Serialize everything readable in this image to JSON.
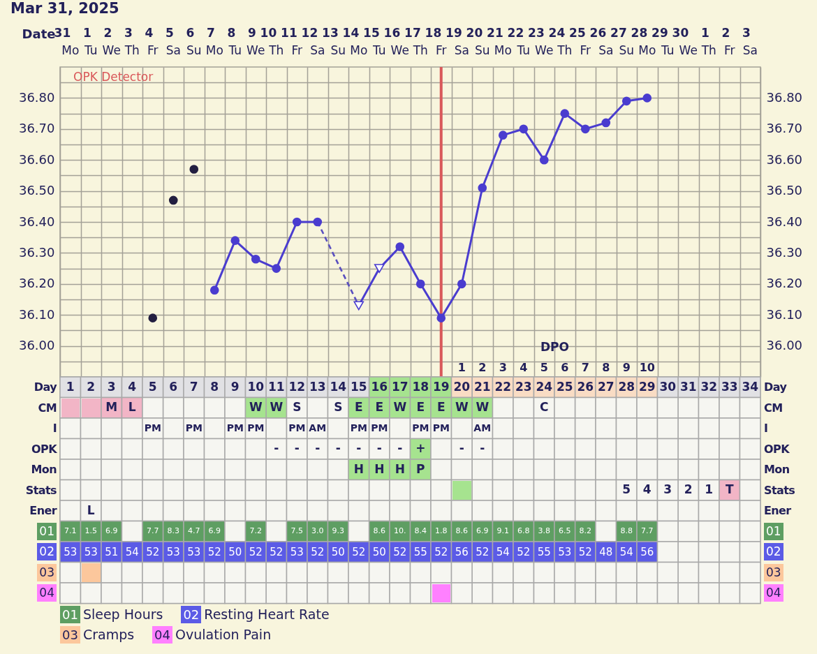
{
  "chart_data": [
    {
      "type": "line",
      "title": "Mar 31, 2025",
      "xlabel": "Date",
      "categories": [
        "31 Mo",
        "1 Tu",
        "2 We",
        "3 Th",
        "4 Fr",
        "5 Sa",
        "6 Su",
        "7 Mo",
        "8 Tu",
        "9 We",
        "10 Th",
        "11 Fr",
        "12 Sa",
        "13 Su",
        "14 Mo",
        "15 Tu",
        "16 We",
        "17 Th",
        "18 Fr",
        "19 Sa",
        "20 Su",
        "21 Mo",
        "22 Tu",
        "23 We",
        "24 Th",
        "25 Fr",
        "26 Sa",
        "27 Su",
        "28 Mo",
        "29 Tu",
        "30 We",
        "1 Th",
        "2 Fr",
        "3 Sa"
      ],
      "ylim": [
        35.9,
        36.9
      ],
      "yticks": [
        {
          "value": 35.95,
          "label": null
        },
        {
          "value": 36.0,
          "label": "36.00"
        },
        {
          "value": 36.05,
          "label": null
        },
        {
          "value": 36.1,
          "label": "36.10"
        },
        {
          "value": 36.15,
          "label": null
        },
        {
          "value": 36.2,
          "label": "36.20"
        },
        {
          "value": 36.25,
          "label": null
        },
        {
          "value": 36.3,
          "label": "36.30"
        },
        {
          "value": 36.35,
          "label": null
        },
        {
          "value": 36.4,
          "label": "36.40"
        },
        {
          "value": 36.45,
          "label": null
        },
        {
          "value": 36.5,
          "label": "36.50"
        },
        {
          "value": 36.55,
          "label": null
        },
        {
          "value": 36.6,
          "label": "36.60"
        },
        {
          "value": 36.65,
          "label": null
        },
        {
          "value": 36.7,
          "label": "36.70"
        },
        {
          "value": 36.75,
          "label": null
        },
        {
          "value": 36.8,
          "label": "36.80"
        },
        {
          "value": 36.85,
          "label": null
        }
      ],
      "y2lim": [
        35.9,
        36.9
      ],
      "y2ticks": [
        {
          "value": 36.0,
          "label": "36.00"
        },
        {
          "value": 36.1,
          "label": "36.10"
        },
        {
          "value": 36.2,
          "label": "36.20"
        },
        {
          "value": 36.3,
          "label": "36.30"
        },
        {
          "value": 36.4,
          "label": "36.40"
        },
        {
          "value": 36.5,
          "label": "36.50"
        },
        {
          "value": 36.6,
          "label": "36.60"
        },
        {
          "value": 36.7,
          "label": "36.70"
        },
        {
          "value": 36.8,
          "label": "36.80"
        }
      ],
      "grid": true,
      "series": [
        {
          "type": "line",
          "color": "#4a3ccf",
          "values": [
            null,
            null,
            null,
            null,
            null,
            null,
            null,
            36.18,
            36.34,
            36.28,
            36.25,
            36.4,
            36.4,
            null,
            36.13,
            36.25,
            36.32,
            36.2,
            36.09,
            36.2,
            36.51,
            36.68,
            36.7,
            36.6,
            36.75,
            36.7,
            36.72,
            36.79,
            36.8,
            null,
            null,
            null,
            null,
            null
          ]
        },
        {
          "type": "line",
          "color": "#5a4fbf",
          "line_style": "dashed",
          "x": [
            "12 Sa",
            "14 Mo"
          ],
          "values": [
            36.4,
            36.13
          ]
        },
        {
          "type": "scatter",
          "color": "#4a3ccf",
          "marker": "circle",
          "values": [
            null,
            null,
            null,
            null,
            null,
            null,
            null,
            36.18,
            36.34,
            36.28,
            36.25,
            36.4,
            36.4,
            null,
            null,
            null,
            36.32,
            36.2,
            36.09,
            36.2,
            36.51,
            36.68,
            36.7,
            36.6,
            36.75,
            36.7,
            36.72,
            36.79,
            36.8,
            null,
            null,
            null,
            null,
            null
          ]
        },
        {
          "type": "scatter",
          "color": "#4a3ccf",
          "marker": "triangle",
          "values": [
            null,
            null,
            null,
            null,
            null,
            null,
            null,
            null,
            null,
            null,
            null,
            null,
            null,
            null,
            36.13,
            36.25,
            null,
            null,
            null,
            null,
            null,
            null,
            null,
            null,
            null,
            null,
            null,
            null,
            null,
            null,
            null,
            null,
            null,
            null
          ]
        },
        {
          "type": "scatter",
          "color": "#221e40",
          "marker": "circle",
          "values": [
            null,
            null,
            null,
            null,
            36.09,
            36.47,
            36.57,
            null,
            null,
            null,
            null,
            null,
            null,
            null,
            null,
            null,
            null,
            null,
            null,
            null,
            null,
            null,
            null,
            null,
            null,
            null,
            null,
            null,
            null,
            null,
            null,
            null,
            null,
            null
          ]
        }
      ],
      "ref_lines": [
        {
          "axis": "x",
          "value": "18 Fr",
          "label": "OPK Detector",
          "color": "#d9585a"
        }
      ]
    },
    {
      "type": "heatmap",
      "xlabel": "DPO",
      "categories": [
        null,
        null,
        null,
        null,
        null,
        null,
        null,
        null,
        null,
        null,
        null,
        null,
        null,
        null,
        null,
        null,
        null,
        null,
        null,
        "1",
        "2",
        "3",
        "4",
        "5",
        "6",
        "7",
        "8",
        "9",
        "10",
        null,
        null,
        null,
        null,
        null
      ],
      "y_categories": [
        "Day",
        "CM",
        "I",
        "OPK",
        "Mon",
        "Stats",
        "Ener",
        "01",
        "02",
        "03",
        "04"
      ],
      "y2_categories": [
        "Day",
        "CM",
        "I",
        "OPK",
        "Mon",
        "Stats",
        "Ener",
        "01",
        "02",
        "03",
        "04"
      ],
      "cells": [
        [
          1,
          2,
          3,
          4,
          5,
          6,
          7,
          8,
          9,
          10,
          11,
          12,
          13,
          14,
          15,
          16,
          17,
          18,
          19,
          20,
          21,
          22,
          23,
          24,
          25,
          26,
          27,
          28,
          29,
          30,
          31,
          32,
          33,
          34
        ],
        [
          null,
          null,
          null,
          null,
          null,
          null,
          null,
          null,
          null,
          null,
          null,
          null,
          null,
          null,
          null,
          null,
          null,
          null,
          null,
          null,
          null,
          null,
          null,
          null,
          null,
          null,
          null,
          null,
          null,
          null,
          null,
          null,
          null,
          null
        ],
        [
          null,
          null,
          null,
          null,
          null,
          null,
          null,
          null,
          null,
          null,
          null,
          null,
          null,
          null,
          null,
          null,
          null,
          null,
          null,
          null,
          null,
          null,
          null,
          null,
          null,
          null,
          null,
          null,
          null,
          null,
          null,
          null,
          null,
          null
        ],
        [
          null,
          null,
          null,
          null,
          null,
          null,
          null,
          null,
          null,
          null,
          null,
          null,
          null,
          null,
          null,
          null,
          null,
          null,
          null,
          null,
          null,
          null,
          null,
          null,
          null,
          null,
          null,
          null,
          null,
          null,
          null,
          null,
          null,
          null
        ],
        [
          null,
          null,
          null,
          null,
          null,
          null,
          null,
          null,
          null,
          null,
          null,
          null,
          null,
          null,
          null,
          null,
          null,
          null,
          null,
          null,
          null,
          null,
          null,
          null,
          null,
          null,
          null,
          null,
          null,
          null,
          null,
          null,
          null,
          null
        ],
        [
          null,
          null,
          null,
          null,
          null,
          null,
          null,
          null,
          null,
          null,
          null,
          null,
          null,
          null,
          null,
          null,
          null,
          null,
          null,
          null,
          null,
          null,
          null,
          null,
          null,
          null,
          null,
          5,
          4,
          3,
          2,
          1,
          null,
          null
        ],
        [
          null,
          null,
          null,
          null,
          null,
          null,
          null,
          null,
          null,
          null,
          null,
          null,
          null,
          null,
          null,
          null,
          null,
          null,
          null,
          null,
          null,
          null,
          null,
          null,
          null,
          null,
          null,
          null,
          null,
          null,
          null,
          null,
          null,
          null
        ],
        [
          7.1,
          1.5,
          6.9,
          null,
          7.7,
          8.3,
          4.7,
          6.9,
          null,
          7.2,
          null,
          7.5,
          3.0,
          9.3,
          null,
          8.6,
          10,
          8.4,
          1.8,
          8.6,
          6.9,
          9.1,
          6.8,
          3.8,
          6.5,
          8.2,
          null,
          8.8,
          7.7,
          null,
          null,
          null,
          null,
          null
        ],
        [
          53,
          53,
          51,
          54,
          52,
          53,
          53,
          52,
          50,
          52,
          52,
          53,
          52,
          50,
          52,
          50,
          52,
          55,
          52,
          56,
          52,
          54,
          52,
          55,
          53,
          52,
          48,
          54,
          56,
          null,
          null,
          null,
          null,
          null
        ],
        [
          null,
          null,
          null,
          null,
          null,
          null,
          null,
          null,
          null,
          null,
          null,
          null,
          null,
          null,
          null,
          null,
          null,
          null,
          null,
          null,
          null,
          null,
          null,
          null,
          null,
          null,
          null,
          null,
          null,
          null,
          null,
          null,
          null,
          null
        ],
        [
          null,
          null,
          null,
          null,
          null,
          null,
          null,
          null,
          null,
          null,
          null,
          null,
          null,
          null,
          null,
          null,
          null,
          null,
          null,
          null,
          null,
          null,
          null,
          null,
          null,
          null,
          null,
          null,
          null,
          null,
          null,
          null,
          null,
          null
        ]
      ],
      "cell_labels": [
        [
          "1",
          "2",
          "3",
          "4",
          "5",
          "6",
          "7",
          "8",
          "9",
          "10",
          "11",
          "12",
          "13",
          "14",
          "15",
          "16",
          "17",
          "18",
          "19",
          "20",
          "21",
          "22",
          "23",
          "24",
          "25",
          "26",
          "27",
          "28",
          "29",
          "30",
          "31",
          "32",
          "33",
          "34"
        ],
        [
          null,
          null,
          "M",
          "L",
          null,
          null,
          null,
          null,
          null,
          "W",
          "W",
          "S",
          null,
          "S",
          "E",
          "E",
          "W",
          "E",
          "E",
          "W",
          "W",
          null,
          null,
          "C",
          null,
          null,
          null,
          null,
          null,
          null,
          null,
          null,
          null,
          null
        ],
        [
          null,
          null,
          null,
          null,
          "PM",
          null,
          "PM",
          null,
          "PM",
          "PM",
          null,
          "PM",
          "AM",
          null,
          "PM",
          "PM",
          null,
          "PM",
          "PM",
          null,
          "AM",
          null,
          null,
          null,
          null,
          null,
          null,
          null,
          null,
          null,
          null,
          null,
          null,
          null
        ],
        [
          null,
          null,
          null,
          null,
          null,
          null,
          null,
          null,
          null,
          null,
          "-",
          "-",
          "-",
          "-",
          "-",
          "-",
          "-",
          "+",
          null,
          "-",
          "-",
          null,
          null,
          null,
          null,
          null,
          null,
          null,
          null,
          null,
          null,
          null,
          null,
          null
        ],
        [
          null,
          null,
          null,
          null,
          null,
          null,
          null,
          null,
          null,
          null,
          null,
          null,
          null,
          null,
          "H",
          "H",
          "H",
          "P",
          null,
          null,
          null,
          null,
          null,
          null,
          null,
          null,
          null,
          null,
          null,
          null,
          null,
          null,
          null,
          null
        ],
        [
          null,
          null,
          null,
          null,
          null,
          null,
          null,
          null,
          null,
          null,
          null,
          null,
          null,
          null,
          null,
          null,
          null,
          null,
          null,
          null,
          null,
          null,
          null,
          null,
          null,
          null,
          null,
          "5",
          "4",
          "3",
          "2",
          "1",
          "T",
          null
        ],
        [
          null,
          "L",
          null,
          null,
          null,
          null,
          null,
          null,
          null,
          null,
          null,
          null,
          null,
          null,
          null,
          null,
          null,
          null,
          null,
          null,
          null,
          null,
          null,
          null,
          null,
          null,
          null,
          null,
          null,
          null,
          null,
          null,
          null,
          null
        ],
        [
          "7.1",
          "1.5",
          "6.9",
          null,
          "7.7",
          "8.3",
          "4.7",
          "6.9",
          null,
          "7.2",
          null,
          "7.5",
          "3.0",
          "9.3",
          null,
          "8.6",
          "10.",
          "8.4",
          "1.8",
          "8.6",
          "6.9",
          "9.1",
          "6.8",
          "3.8",
          "6.5",
          "8.2",
          null,
          "8.8",
          "7.7",
          null,
          null,
          null,
          null,
          null
        ],
        [
          "53",
          "53",
          "51",
          "54",
          "52",
          "53",
          "53",
          "52",
          "50",
          "52",
          "52",
          "53",
          "52",
          "50",
          "52",
          "50",
          "52",
          "55",
          "52",
          "56",
          "52",
          "54",
          "52",
          "55",
          "53",
          "52",
          "48",
          "54",
          "56",
          null,
          null,
          null,
          null,
          null
        ],
        [
          null,
          null,
          null,
          null,
          null,
          null,
          null,
          null,
          null,
          null,
          null,
          null,
          null,
          null,
          null,
          null,
          null,
          null,
          null,
          null,
          null,
          null,
          null,
          null,
          null,
          null,
          null,
          null,
          null,
          null,
          null,
          null,
          null,
          null
        ],
        [
          null,
          null,
          null,
          null,
          null,
          null,
          null,
          null,
          null,
          null,
          null,
          null,
          null,
          null,
          null,
          null,
          null,
          null,
          null,
          null,
          null,
          null,
          null,
          null,
          null,
          null,
          null,
          null,
          null,
          null,
          null,
          null,
          null,
          null
        ]
      ],
      "colors": [
        [
          "#e1e1e4",
          "#e1e1e4",
          "#e1e1e4",
          "#e1e1e4",
          "#e1e1e4",
          "#e1e1e4",
          "#e1e1e4",
          "#e1e1e4",
          "#e1e1e4",
          "#e1e1e4",
          "#e1e1e4",
          "#e1e1e4",
          "#e1e1e4",
          "#e1e1e4",
          "#e1e1e4",
          "#a6e38f",
          "#a6e38f",
          "#a6e38f",
          "#a6e38f",
          "#f9dcc4",
          "#f9dcc4",
          "#f9dcc4",
          "#f9dcc4",
          "#f9dcc4",
          "#f9dcc4",
          "#f9dcc4",
          "#f9dcc4",
          "#f9dcc4",
          "#f9dcc4",
          "#e1e1e4",
          "#e1e1e4",
          "#e1e1e4",
          "#e1e1e4",
          "#e1e1e4"
        ],
        [
          "#f2b5c6",
          "#f2b5c6",
          "#f2b5c6",
          "#f2b5c6",
          "#f6f6f1",
          "#f6f6f1",
          "#f6f6f1",
          "#f6f6f1",
          "#f6f6f1",
          "#a6e38f",
          "#a6e38f",
          "#f6f6f1",
          "#f6f6f1",
          "#f6f6f1",
          "#a6e38f",
          "#a6e38f",
          "#a6e38f",
          "#a6e38f",
          "#a6e38f",
          "#a6e38f",
          "#a6e38f",
          "#f6f6f1",
          "#f6f6f1",
          "#f6f6f1",
          "#f6f6f1",
          "#f6f6f1",
          "#f6f6f1",
          "#f6f6f1",
          "#f6f6f1",
          "#f6f6f1",
          "#f6f6f1",
          "#f6f6f1",
          "#f6f6f1",
          "#f6f6f1"
        ],
        [
          "#f6f6f1",
          "#f6f6f1",
          "#f6f6f1",
          "#f6f6f1",
          "#f6f6f1",
          "#f6f6f1",
          "#f6f6f1",
          "#f6f6f1",
          "#f6f6f1",
          "#f6f6f1",
          "#f6f6f1",
          "#f6f6f1",
          "#f6f6f1",
          "#f6f6f1",
          "#f6f6f1",
          "#f6f6f1",
          "#f6f6f1",
          "#f6f6f1",
          "#f6f6f1",
          "#f6f6f1",
          "#f6f6f1",
          "#f6f6f1",
          "#f6f6f1",
          "#f6f6f1",
          "#f6f6f1",
          "#f6f6f1",
          "#f6f6f1",
          "#f6f6f1",
          "#f6f6f1",
          "#f6f6f1",
          "#f6f6f1",
          "#f6f6f1",
          "#f6f6f1",
          "#f6f6f1"
        ],
        [
          "#f6f6f1",
          "#f6f6f1",
          "#f6f6f1",
          "#f6f6f1",
          "#f6f6f1",
          "#f6f6f1",
          "#f6f6f1",
          "#f6f6f1",
          "#f6f6f1",
          "#f6f6f1",
          "#f6f6f1",
          "#f6f6f1",
          "#f6f6f1",
          "#f6f6f1",
          "#f6f6f1",
          "#f6f6f1",
          "#f6f6f1",
          "#a6e38f",
          "#f6f6f1",
          "#f6f6f1",
          "#f6f6f1",
          "#f6f6f1",
          "#f6f6f1",
          "#f6f6f1",
          "#f6f6f1",
          "#f6f6f1",
          "#f6f6f1",
          "#f6f6f1",
          "#f6f6f1",
          "#f6f6f1",
          "#f6f6f1",
          "#f6f6f1",
          "#f6f6f1",
          "#f6f6f1"
        ],
        [
          "#f6f6f1",
          "#f6f6f1",
          "#f6f6f1",
          "#f6f6f1",
          "#f6f6f1",
          "#f6f6f1",
          "#f6f6f1",
          "#f6f6f1",
          "#f6f6f1",
          "#f6f6f1",
          "#f6f6f1",
          "#f6f6f1",
          "#f6f6f1",
          "#f6f6f1",
          "#a6e38f",
          "#a6e38f",
          "#a6e38f",
          "#a6e38f",
          "#f6f6f1",
          "#f6f6f1",
          "#f6f6f1",
          "#f6f6f1",
          "#f6f6f1",
          "#f6f6f1",
          "#f6f6f1",
          "#f6f6f1",
          "#f6f6f1",
          "#f6f6f1",
          "#f6f6f1",
          "#f6f6f1",
          "#f6f6f1",
          "#f6f6f1",
          "#f6f6f1",
          "#f6f6f1"
        ],
        [
          "#f6f6f1",
          "#f6f6f1",
          "#f6f6f1",
          "#f6f6f1",
          "#f6f6f1",
          "#f6f6f1",
          "#f6f6f1",
          "#f6f6f1",
          "#f6f6f1",
          "#f6f6f1",
          "#f6f6f1",
          "#f6f6f1",
          "#f6f6f1",
          "#f6f6f1",
          "#f6f6f1",
          "#f6f6f1",
          "#f6f6f1",
          "#f6f6f1",
          "#f6f6f1",
          "#a6e38f",
          "#f6f6f1",
          "#f6f6f1",
          "#f6f6f1",
          "#f6f6f1",
          "#f6f6f1",
          "#f6f6f1",
          "#f6f6f1",
          "#f6f6f1",
          "#f6f6f1",
          "#f6f6f1",
          "#f6f6f1",
          "#f6f6f1",
          "#f2b5c6",
          "#f6f6f1"
        ],
        [
          "#f6f6f1",
          "#f6f6f1",
          "#f6f6f1",
          "#f6f6f1",
          "#f6f6f1",
          "#f6f6f1",
          "#f6f6f1",
          "#f6f6f1",
          "#f6f6f1",
          "#f6f6f1",
          "#f6f6f1",
          "#f6f6f1",
          "#f6f6f1",
          "#f6f6f1",
          "#f6f6f1",
          "#f6f6f1",
          "#f6f6f1",
          "#f6f6f1",
          "#f6f6f1",
          "#f6f6f1",
          "#f6f6f1",
          "#f6f6f1",
          "#f6f6f1",
          "#f6f6f1",
          "#f6f6f1",
          "#f6f6f1",
          "#f6f6f1",
          "#f6f6f1",
          "#f6f6f1",
          "#f6f6f1",
          "#f6f6f1",
          "#f6f6f1",
          "#f6f6f1",
          "#f6f6f1"
        ],
        [
          "#5e9e62",
          "#5e9e62",
          "#5e9e62",
          "#f6f6f1",
          "#5e9e62",
          "#5e9e62",
          "#5e9e62",
          "#5e9e62",
          "#f6f6f1",
          "#5e9e62",
          "#f6f6f1",
          "#5e9e62",
          "#5e9e62",
          "#5e9e62",
          "#f6f6f1",
          "#5e9e62",
          "#5e9e62",
          "#5e9e62",
          "#5e9e62",
          "#5e9e62",
          "#5e9e62",
          "#5e9e62",
          "#5e9e62",
          "#5e9e62",
          "#5e9e62",
          "#5e9e62",
          "#f6f6f1",
          "#5e9e62",
          "#5e9e62",
          "#f6f6f1",
          "#f6f6f1",
          "#f6f6f1",
          "#f6f6f1",
          "#f6f6f1"
        ],
        [
          "#5b5be6",
          "#5b5be6",
          "#5b5be6",
          "#5b5be6",
          "#5b5be6",
          "#5b5be6",
          "#5b5be6",
          "#5b5be6",
          "#5b5be6",
          "#5b5be6",
          "#5b5be6",
          "#5b5be6",
          "#5b5be6",
          "#5b5be6",
          "#5b5be6",
          "#5b5be6",
          "#5b5be6",
          "#5b5be6",
          "#5b5be6",
          "#5b5be6",
          "#5b5be6",
          "#5b5be6",
          "#5b5be6",
          "#5b5be6",
          "#5b5be6",
          "#5b5be6",
          "#5b5be6",
          "#5b5be6",
          "#5b5be6",
          "#f6f6f1",
          "#f6f6f1",
          "#f6f6f1",
          "#f6f6f1",
          "#f6f6f1"
        ],
        [
          "#f6f6f1",
          "#fcc79c",
          "#f6f6f1",
          "#f6f6f1",
          "#f6f6f1",
          "#f6f6f1",
          "#f6f6f1",
          "#f6f6f1",
          "#f6f6f1",
          "#f6f6f1",
          "#f6f6f1",
          "#f6f6f1",
          "#f6f6f1",
          "#f6f6f1",
          "#f6f6f1",
          "#f6f6f1",
          "#f6f6f1",
          "#f6f6f1",
          "#f6f6f1",
          "#f6f6f1",
          "#f6f6f1",
          "#f6f6f1",
          "#f6f6f1",
          "#f6f6f1",
          "#f6f6f1",
          "#f6f6f1",
          "#f6f6f1",
          "#f6f6f1",
          "#f6f6f1",
          "#f6f6f1",
          "#f6f6f1",
          "#f6f6f1",
          "#f6f6f1",
          "#f6f6f1"
        ],
        [
          "#f6f6f1",
          "#f6f6f1",
          "#f6f6f1",
          "#f6f6f1",
          "#f6f6f1",
          "#f6f6f1",
          "#f6f6f1",
          "#f6f6f1",
          "#f6f6f1",
          "#f6f6f1",
          "#f6f6f1",
          "#f6f6f1",
          "#f6f6f1",
          "#f6f6f1",
          "#f6f6f1",
          "#f6f6f1",
          "#f6f6f1",
          "#f6f6f1",
          "#ff80ff",
          "#f6f6f1",
          "#f6f6f1",
          "#f6f6f1",
          "#f6f6f1",
          "#f6f6f1",
          "#f6f6f1",
          "#f6f6f1",
          "#f6f6f1",
          "#f6f6f1",
          "#f6f6f1",
          "#f6f6f1",
          "#f6f6f1",
          "#f6f6f1",
          "#f6f6f1",
          "#f6f6f1"
        ]
      ]
    },
    {
      "type": "other",
      "categories": [
        "01",
        "02",
        "03",
        "04"
      ],
      "annotations": [
        "Sleep Hours",
        "Resting Heart Rate",
        "Cramps",
        "Ovulation Pain"
      ],
      "colors": [
        "#5e9e62",
        "#5b5be6",
        "#fcc79c",
        "#ff80ff"
      ]
    }
  ]
}
